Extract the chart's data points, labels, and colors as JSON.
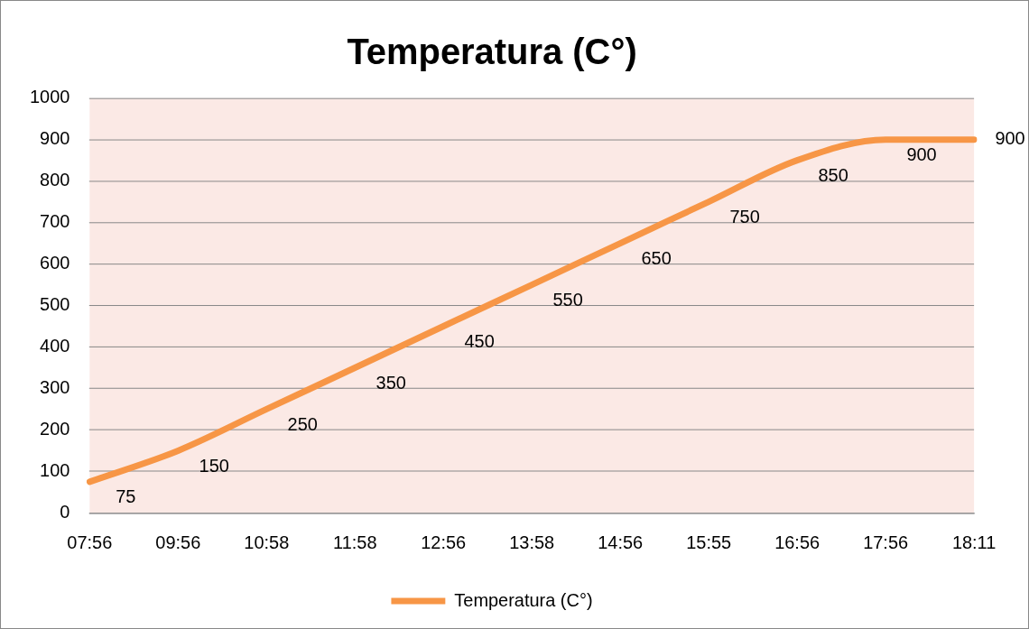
{
  "chart_data": {
    "type": "line",
    "title": "Temperatura (C°)",
    "categories": [
      "07:56",
      "09:56",
      "10:58",
      "11:58",
      "12:56",
      "13:58",
      "14:56",
      "15:55",
      "16:56",
      "17:56",
      "18:11"
    ],
    "series": [
      {
        "name": "Temperatura (C°)",
        "color": "#f79646",
        "values": [
          75,
          150,
          250,
          350,
          450,
          550,
          650,
          750,
          850,
          900,
          900
        ]
      }
    ],
    "ylim": [
      0,
      1000
    ],
    "yticks": [
      0,
      100,
      200,
      300,
      400,
      500,
      600,
      700,
      800,
      900,
      1000
    ],
    "grid": "y",
    "legend": "bottom",
    "data_labels": true
  }
}
